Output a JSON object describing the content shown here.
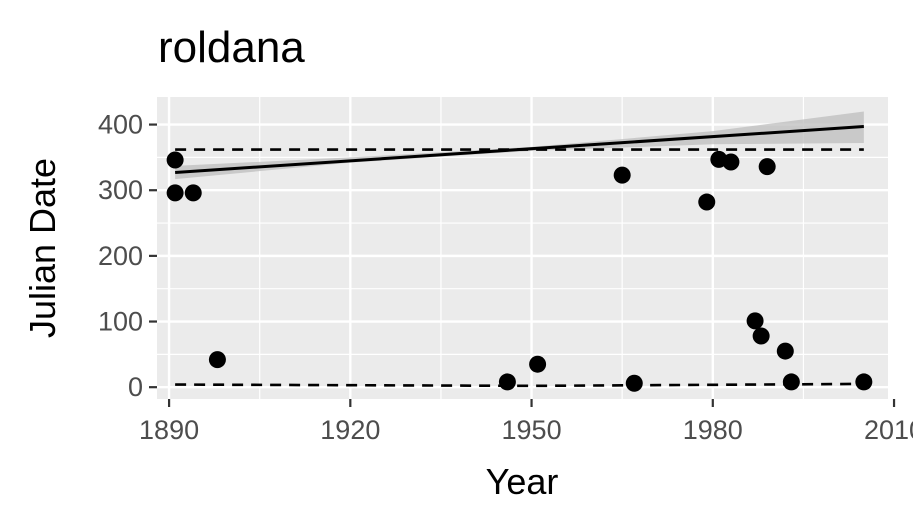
{
  "chart_data": {
    "type": "scatter",
    "title": "roldana",
    "xlabel": "Year",
    "ylabel": "Julian Date",
    "xlim": [
      1888,
      2009
    ],
    "ylim": [
      -18,
      442
    ],
    "x_ticks": [
      1890,
      1920,
      1950,
      1980,
      2010
    ],
    "x_tick_labels": [
      "1890",
      "1920",
      "1950",
      "1980",
      "2010"
    ],
    "y_ticks": [
      0,
      100,
      200,
      300,
      400
    ],
    "y_tick_labels": [
      "0",
      "100",
      "200",
      "300",
      "400"
    ],
    "grid": true,
    "legend": "none",
    "points": [
      {
        "x": 1891,
        "y": 346
      },
      {
        "x": 1891,
        "y": 296
      },
      {
        "x": 1894,
        "y": 296
      },
      {
        "x": 1898,
        "y": 42
      },
      {
        "x": 1946,
        "y": 8
      },
      {
        "x": 1951,
        "y": 35
      },
      {
        "x": 1965,
        "y": 323
      },
      {
        "x": 1967,
        "y": 6
      },
      {
        "x": 1979,
        "y": 282
      },
      {
        "x": 1981,
        "y": 347
      },
      {
        "x": 1983,
        "y": 343
      },
      {
        "x": 1987,
        "y": 101
      },
      {
        "x": 1988,
        "y": 78
      },
      {
        "x": 1989,
        "y": 336
      },
      {
        "x": 1992,
        "y": 55
      },
      {
        "x": 1993,
        "y": 8
      },
      {
        "x": 2005,
        "y": 8
      }
    ],
    "trend_line": {
      "x": [
        1891,
        2005
      ],
      "y": [
        327,
        397
      ]
    },
    "confidence_band": {
      "x": [
        1891,
        1920,
        1950,
        1980,
        2005
      ],
      "lower": [
        317,
        342,
        360,
        370,
        372
      ],
      "upper": [
        337,
        350,
        366,
        390,
        420
      ]
    },
    "dashed_lines": [
      {
        "x": [
          1891,
          2005
        ],
        "y": [
          362,
          362
        ]
      },
      {
        "x": [
          1891,
          1950,
          2005
        ],
        "y": [
          4,
          2,
          5
        ]
      }
    ],
    "colors": {
      "panel_background": "#ebebeb",
      "grid": "#ffffff",
      "points": "#000000",
      "line": "#000000",
      "band": "#bdbdbd"
    }
  }
}
